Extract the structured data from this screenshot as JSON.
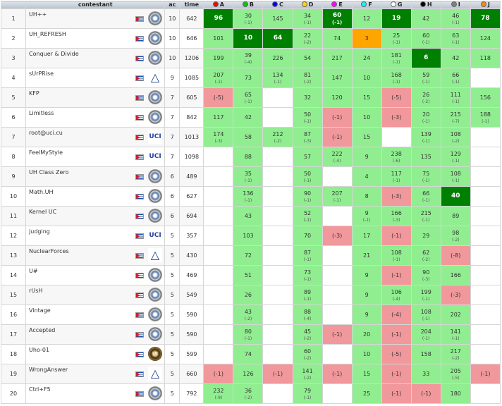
{
  "header": {
    "contestant": "contestant",
    "ac": "ac",
    "time": "time"
  },
  "problems": [
    {
      "label": "A",
      "color": "#ff0000"
    },
    {
      "label": "B",
      "color": "#00cc00"
    },
    {
      "label": "C",
      "color": "#0000ff"
    },
    {
      "label": "D",
      "color": "#ffd700"
    },
    {
      "label": "E",
      "color": "#ff00ff"
    },
    {
      "label": "F",
      "color": "#00ffff"
    },
    {
      "label": "G",
      "color": "#ffffff"
    },
    {
      "label": "H",
      "color": "#000000"
    },
    {
      "label": "I",
      "color": "#808080"
    },
    {
      "label": "J",
      "color": "#ff8c00"
    }
  ],
  "rows": [
    {
      "rank": "1",
      "name": "UH++",
      "logo": "uh",
      "ac": "10",
      "time": "642",
      "cells": [
        [
          "ff",
          "96",
          ""
        ],
        [
          "s",
          "30",
          "(-1)"
        ],
        [
          "s",
          "145",
          ""
        ],
        [
          "s",
          "34",
          "(-1)"
        ],
        [
          "ff",
          "60",
          "(-1)"
        ],
        [
          "s",
          "12",
          ""
        ],
        [
          "ff",
          "19",
          ""
        ],
        [
          "s",
          "42",
          ""
        ],
        [
          "s",
          "46",
          "(-1)"
        ],
        [
          "ff",
          "78",
          ""
        ]
      ]
    },
    {
      "rank": "2",
      "name": "UH_REFRESH",
      "logo": "uh",
      "ac": "10",
      "time": "646",
      "cells": [
        [
          "s",
          "101",
          ""
        ],
        [
          "ff",
          "10",
          ""
        ],
        [
          "ff",
          "64",
          ""
        ],
        [
          "s",
          "22",
          "(-2)"
        ],
        [
          "s",
          "74",
          ""
        ],
        [
          "w",
          "3",
          ""
        ],
        [
          "s",
          "25",
          "(-1)"
        ],
        [
          "s",
          "60",
          "(-1)"
        ],
        [
          "s",
          "63",
          "(-1)"
        ],
        [
          "s",
          "124",
          ""
        ]
      ]
    },
    {
      "rank": "3",
      "name": "Conquer & Divide",
      "logo": "uh",
      "ac": "10",
      "time": "1206",
      "cells": [
        [
          "s",
          "199",
          ""
        ],
        [
          "s",
          "39",
          "(-4)"
        ],
        [
          "s",
          "226",
          ""
        ],
        [
          "s",
          "54",
          ""
        ],
        [
          "s",
          "217",
          ""
        ],
        [
          "s",
          "24",
          ""
        ],
        [
          "s",
          "181",
          "(-1)"
        ],
        [
          "ff",
          "6",
          ""
        ],
        [
          "s",
          "42",
          ""
        ],
        [
          "s",
          "118",
          ""
        ]
      ]
    },
    {
      "rank": "4",
      "name": "sUrPRise",
      "logo": "tri",
      "ac": "9",
      "time": "1085",
      "cells": [
        [
          "s",
          "207",
          "(-1)"
        ],
        [
          "s",
          "73",
          ""
        ],
        [
          "s",
          "134",
          "(-1)"
        ],
        [
          "s",
          "81",
          "(-2)"
        ],
        [
          "s",
          "147",
          ""
        ],
        [
          "s",
          "10",
          ""
        ],
        [
          "s",
          "168",
          "(-1)"
        ],
        [
          "s",
          "59",
          "(-1)"
        ],
        [
          "s",
          "66",
          "(-1)"
        ],
        [
          "e",
          "",
          ""
        ]
      ]
    },
    {
      "rank": "5",
      "name": "KFP",
      "logo": "uh",
      "ac": "7",
      "time": "605",
      "cells": [
        [
          "f",
          "(-5)",
          ""
        ],
        [
          "s",
          "65",
          "(-1)"
        ],
        [
          "e",
          "",
          ""
        ],
        [
          "s",
          "32",
          ""
        ],
        [
          "s",
          "120",
          ""
        ],
        [
          "s",
          "15",
          ""
        ],
        [
          "f",
          "(-5)",
          ""
        ],
        [
          "s",
          "26",
          "(-2)"
        ],
        [
          "s",
          "111",
          "(-1)"
        ],
        [
          "s",
          "156",
          ""
        ]
      ]
    },
    {
      "rank": "6",
      "name": "Limitless",
      "logo": "uh",
      "ac": "7",
      "time": "842",
      "cells": [
        [
          "s",
          "117",
          ""
        ],
        [
          "s",
          "42",
          ""
        ],
        [
          "e",
          "",
          ""
        ],
        [
          "s",
          "50",
          "(-1)"
        ],
        [
          "f",
          "(-1)",
          ""
        ],
        [
          "s",
          "10",
          ""
        ],
        [
          "f",
          "(-3)",
          ""
        ],
        [
          "s",
          "20",
          "(-1)"
        ],
        [
          "s",
          "215",
          "(-7)"
        ],
        [
          "s",
          "188",
          "(-1)"
        ]
      ]
    },
    {
      "rank": "7",
      "name": "root@uci.cu",
      "logo": "uci",
      "ac": "7",
      "time": "1013",
      "cells": [
        [
          "s",
          "174",
          "(-3)"
        ],
        [
          "s",
          "58",
          ""
        ],
        [
          "s",
          "212",
          "(-2)"
        ],
        [
          "s",
          "87",
          "(-3)"
        ],
        [
          "f",
          "(-1)",
          ""
        ],
        [
          "s",
          "15",
          ""
        ],
        [
          "e",
          "",
          ""
        ],
        [
          "s",
          "139",
          "(-1)"
        ],
        [
          "s",
          "108",
          "(-2)"
        ],
        [
          "e",
          "",
          ""
        ]
      ]
    },
    {
      "rank": "8",
      "name": "FeelMyStyle",
      "logo": "uci",
      "ac": "7",
      "time": "1098",
      "cells": [
        [
          "e",
          "",
          ""
        ],
        [
          "s",
          "88",
          ""
        ],
        [
          "e",
          "",
          ""
        ],
        [
          "s",
          "57",
          ""
        ],
        [
          "s",
          "222",
          "(-4)"
        ],
        [
          "s",
          "9",
          ""
        ],
        [
          "s",
          "238",
          "(-6)"
        ],
        [
          "s",
          "135",
          ""
        ],
        [
          "s",
          "129",
          "(-1)"
        ],
        [
          "e",
          "",
          ""
        ]
      ]
    },
    {
      "rank": "9",
      "name": "UH Class Zero",
      "logo": "uh",
      "ac": "6",
      "time": "489",
      "cells": [
        [
          "e",
          "",
          ""
        ],
        [
          "s",
          "35",
          "(-1)"
        ],
        [
          "e",
          "",
          ""
        ],
        [
          "s",
          "50",
          "(-1)"
        ],
        [
          "e",
          "",
          ""
        ],
        [
          "s",
          "4",
          ""
        ],
        [
          "s",
          "117",
          "(-1)"
        ],
        [
          "s",
          "75",
          "(-1)"
        ],
        [
          "s",
          "108",
          "(-1)"
        ],
        [
          "e",
          "",
          ""
        ]
      ]
    },
    {
      "rank": "10",
      "name": "Math.UH",
      "logo": "uh",
      "ac": "6",
      "time": "627",
      "cells": [
        [
          "e",
          "",
          ""
        ],
        [
          "s",
          "136",
          "(-1)"
        ],
        [
          "e",
          "",
          ""
        ],
        [
          "s",
          "90",
          "(-1)"
        ],
        [
          "s",
          "207",
          "(-1)"
        ],
        [
          "s",
          "8",
          ""
        ],
        [
          "f",
          "(-3)",
          ""
        ],
        [
          "s",
          "66",
          "(-1)"
        ],
        [
          "ff",
          "40",
          ""
        ],
        [
          "e",
          "",
          ""
        ]
      ]
    },
    {
      "rank": "11",
      "name": "Kernel UC",
      "logo": "uh",
      "ac": "6",
      "time": "694",
      "cells": [
        [
          "e",
          "",
          ""
        ],
        [
          "s",
          "43",
          ""
        ],
        [
          "e",
          "",
          ""
        ],
        [
          "s",
          "52",
          "(-1)"
        ],
        [
          "e",
          "",
          ""
        ],
        [
          "s",
          "9",
          "(-1)"
        ],
        [
          "s",
          "166",
          "(-3)"
        ],
        [
          "s",
          "215",
          "(-1)"
        ],
        [
          "s",
          "89",
          ""
        ],
        [
          "e",
          "",
          ""
        ]
      ]
    },
    {
      "rank": "12",
      "name": "judging",
      "logo": "uci",
      "ac": "5",
      "time": "357",
      "cells": [
        [
          "e",
          "",
          ""
        ],
        [
          "s",
          "103",
          ""
        ],
        [
          "e",
          "",
          ""
        ],
        [
          "s",
          "70",
          ""
        ],
        [
          "f",
          "(-3)",
          ""
        ],
        [
          "s",
          "17",
          ""
        ],
        [
          "f",
          "(-1)",
          ""
        ],
        [
          "s",
          "29",
          ""
        ],
        [
          "s",
          "98",
          "(-2)"
        ],
        [
          "e",
          "",
          ""
        ]
      ]
    },
    {
      "rank": "13",
      "name": "NuclearForces",
      "logo": "tri",
      "ac": "5",
      "time": "430",
      "cells": [
        [
          "e",
          "",
          ""
        ],
        [
          "s",
          "72",
          ""
        ],
        [
          "e",
          "",
          ""
        ],
        [
          "s",
          "87",
          "(-1)"
        ],
        [
          "e",
          "",
          ""
        ],
        [
          "s",
          "21",
          ""
        ],
        [
          "s",
          "108",
          "(-1)"
        ],
        [
          "s",
          "62",
          "(-2)"
        ],
        [
          "f",
          "(-8)",
          ""
        ],
        [
          "e",
          "",
          ""
        ]
      ]
    },
    {
      "rank": "14",
      "name": "U#",
      "logo": "uh",
      "ac": "5",
      "time": "469",
      "cells": [
        [
          "e",
          "",
          ""
        ],
        [
          "s",
          "51",
          ""
        ],
        [
          "e",
          "",
          ""
        ],
        [
          "s",
          "73",
          "(-1)"
        ],
        [
          "e",
          "",
          ""
        ],
        [
          "s",
          "9",
          ""
        ],
        [
          "f",
          "(-1)",
          ""
        ],
        [
          "s",
          "90",
          "(-3)"
        ],
        [
          "s",
          "166",
          ""
        ],
        [
          "e",
          "",
          ""
        ]
      ]
    },
    {
      "rank": "15",
      "name": "rUsH",
      "logo": "uh",
      "ac": "5",
      "time": "549",
      "cells": [
        [
          "e",
          "",
          ""
        ],
        [
          "s",
          "26",
          ""
        ],
        [
          "e",
          "",
          ""
        ],
        [
          "s",
          "89",
          "(-1)"
        ],
        [
          "e",
          "",
          ""
        ],
        [
          "s",
          "9",
          ""
        ],
        [
          "s",
          "106",
          "(-4)"
        ],
        [
          "s",
          "199",
          "(-1)"
        ],
        [
          "f",
          "(-3)",
          ""
        ],
        [
          "e",
          "",
          ""
        ]
      ]
    },
    {
      "rank": "16",
      "name": "Vintage",
      "logo": "uh",
      "ac": "5",
      "time": "590",
      "cells": [
        [
          "e",
          "",
          ""
        ],
        [
          "s",
          "43",
          "(-2)"
        ],
        [
          "e",
          "",
          ""
        ],
        [
          "s",
          "88",
          "(-4)"
        ],
        [
          "e",
          "",
          ""
        ],
        [
          "s",
          "9",
          ""
        ],
        [
          "f",
          "(-4)",
          ""
        ],
        [
          "s",
          "108",
          "(-1)"
        ],
        [
          "s",
          "202",
          ""
        ],
        [
          "e",
          "",
          ""
        ]
      ]
    },
    {
      "rank": "17",
      "name": "Accepted",
      "logo": "uh",
      "ac": "5",
      "time": "590",
      "cells": [
        [
          "e",
          "",
          ""
        ],
        [
          "s",
          "80",
          "(-1)"
        ],
        [
          "e",
          "",
          ""
        ],
        [
          "s",
          "45",
          "(-2)"
        ],
        [
          "f",
          "(-1)",
          ""
        ],
        [
          "s",
          "20",
          ""
        ],
        [
          "f",
          "(-1)",
          ""
        ],
        [
          "s",
          "204",
          "(-1)"
        ],
        [
          "s",
          "141",
          "(-1)"
        ],
        [
          "e",
          "",
          ""
        ]
      ]
    },
    {
      "rank": "18",
      "name": "Uho-01",
      "logo": "ut",
      "ac": "5",
      "time": "599",
      "cells": [
        [
          "e",
          "",
          ""
        ],
        [
          "s",
          "74",
          ""
        ],
        [
          "e",
          "",
          ""
        ],
        [
          "s",
          "60",
          "(-2)"
        ],
        [
          "e",
          "",
          ""
        ],
        [
          "s",
          "10",
          ""
        ],
        [
          "f",
          "(-5)",
          ""
        ],
        [
          "s",
          "158",
          ""
        ],
        [
          "s",
          "217",
          "(-2)"
        ],
        [
          "e",
          "",
          ""
        ]
      ]
    },
    {
      "rank": "19",
      "name": "WrongAnswer",
      "logo": "tri",
      "ac": "5",
      "time": "660",
      "cells": [
        [
          "f",
          "(-1)",
          ""
        ],
        [
          "s",
          "126",
          ""
        ],
        [
          "f",
          "(-1)",
          ""
        ],
        [
          "s",
          "141",
          "(-2)"
        ],
        [
          "f",
          "(-1)",
          ""
        ],
        [
          "s",
          "15",
          ""
        ],
        [
          "f",
          "(-1)",
          ""
        ],
        [
          "s",
          "33",
          ""
        ],
        [
          "s",
          "205",
          "(-5)"
        ],
        [
          "f",
          "(-1)",
          ""
        ]
      ]
    },
    {
      "rank": "20",
      "name": "Ctrl+F5",
      "logo": "uh",
      "ac": "5",
      "time": "792",
      "cells": [
        [
          "s",
          "232",
          "(-9)"
        ],
        [
          "s",
          "36",
          "(-2)"
        ],
        [
          "e",
          "",
          ""
        ],
        [
          "s",
          "79",
          "(-1)"
        ],
        [
          "e",
          "",
          ""
        ],
        [
          "s",
          "25",
          ""
        ],
        [
          "f",
          "(-1)",
          ""
        ],
        [
          "f",
          "(-1)",
          ""
        ],
        [
          "s",
          "180",
          ""
        ],
        [
          "e",
          "",
          ""
        ]
      ]
    }
  ]
}
